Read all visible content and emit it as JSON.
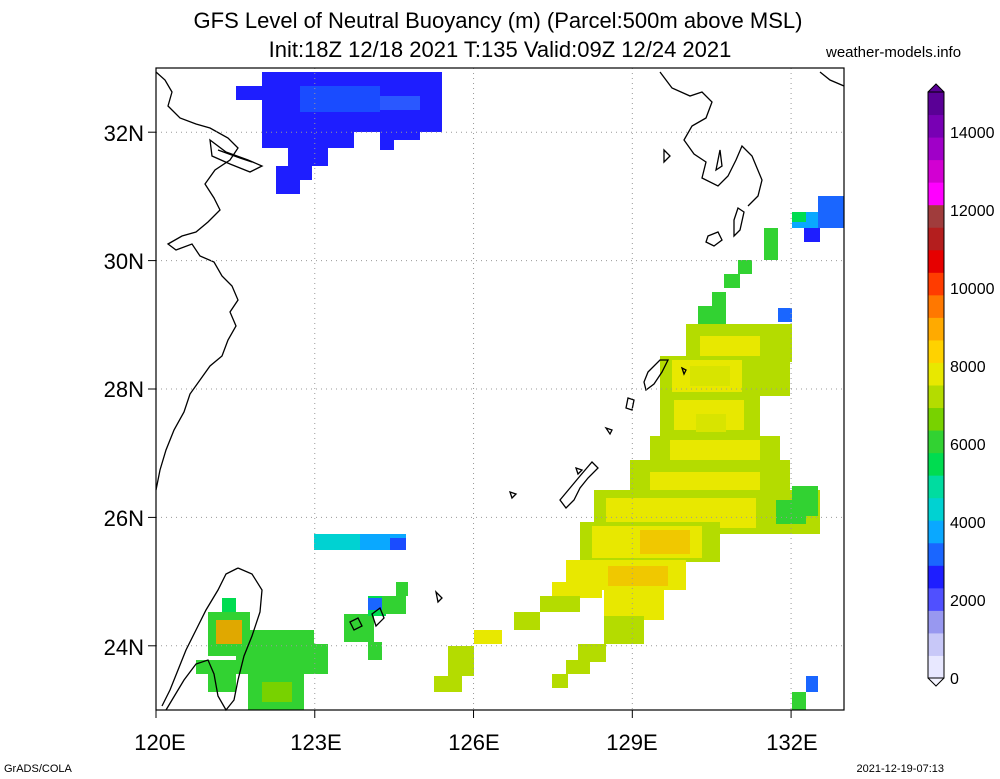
{
  "header": {
    "title_line1": "GFS Level of Neutral Buoyancy (m) (Parcel:500m above MSL)",
    "title_line2": "Init:18Z 12/18 2021 T:135 Valid:09Z 12/24 2021",
    "brand": "weather-models.info"
  },
  "map": {
    "region": "East China Sea / Ryukyu Islands",
    "lon_range": [
      120,
      133
    ],
    "lat_range": [
      23,
      33
    ],
    "lon_ticks": [
      "120E",
      "123E",
      "126E",
      "129E",
      "132E"
    ],
    "lat_ticks": [
      "24N",
      "26N",
      "28N",
      "30N",
      "32N"
    ],
    "gridlines": true
  },
  "colorbar": {
    "ticks": [
      "0",
      "2000",
      "4000",
      "6000",
      "8000",
      "10000",
      "12000",
      "14000"
    ],
    "colors": [
      "#e8e8ff",
      "#c8c8f8",
      "#9898f0",
      "#5050ff",
      "#1e1eff",
      "#1a66ff",
      "#0aa8ff",
      "#00d2d2",
      "#00dca0",
      "#00dc50",
      "#32d232",
      "#78d200",
      "#b4dc00",
      "#e8e800",
      "#ffd200",
      "#ffaa00",
      "#ff7800",
      "#ff3c00",
      "#e60000",
      "#b41e1e",
      "#a03c3c",
      "#ff00ff",
      "#d200d2",
      "#a000c8",
      "#7800b4",
      "#5a0096"
    ]
  },
  "footer": {
    "left": "GrADS/COLA",
    "right": "2021-12-19-07:13"
  }
}
